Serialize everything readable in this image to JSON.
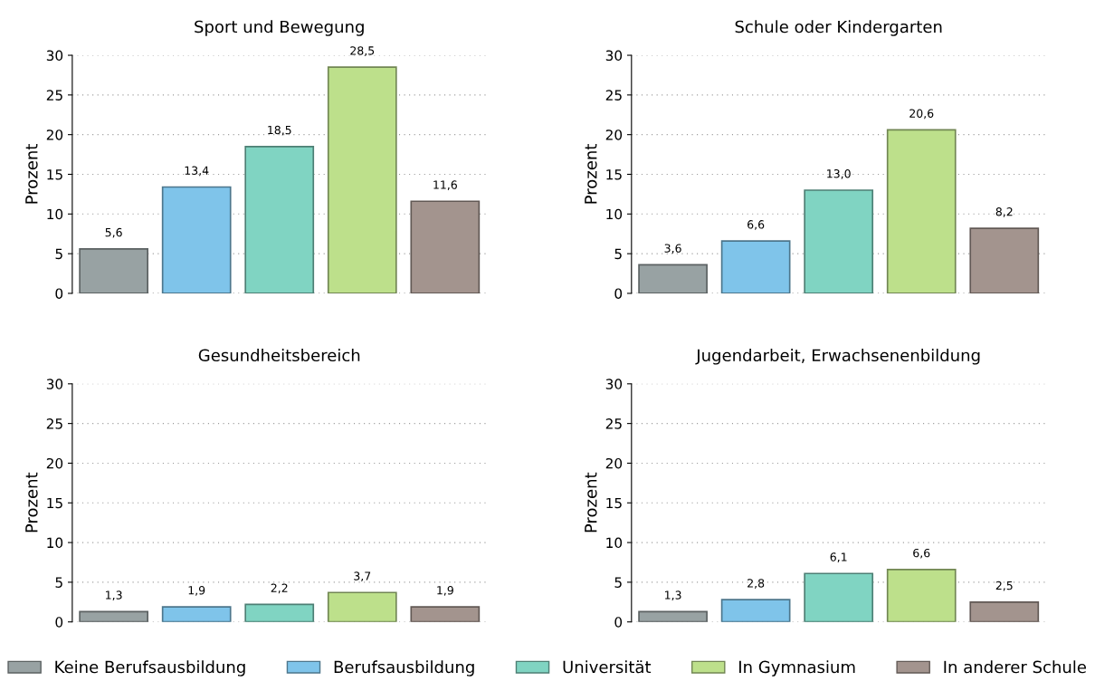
{
  "chart_data": [
    {
      "type": "bar",
      "title": "Sport und Bewegung",
      "ylabel": "Prozent",
      "categories": [
        null,
        null,
        null,
        null,
        null
      ],
      "ylim": [
        0,
        30
      ],
      "yticks": [
        0,
        5,
        10,
        15,
        20,
        25,
        30
      ],
      "grid": "y",
      "series": [
        {
          "color": "#98a2a3",
          "values": [
            5.6,
            null,
            null,
            null,
            null
          ],
          "value_labels": [
            "5,6",
            null,
            null,
            null,
            null
          ]
        },
        {
          "color": "#7fc4ea",
          "values": [
            null,
            13.4,
            null,
            null,
            null
          ],
          "value_labels": [
            null,
            "13,4",
            null,
            null,
            null
          ]
        },
        {
          "color": "#80d4c2",
          "values": [
            null,
            null,
            18.5,
            null,
            null
          ],
          "value_labels": [
            null,
            null,
            "18,5",
            null,
            null
          ]
        },
        {
          "color": "#bde08b",
          "values": [
            null,
            null,
            null,
            28.5,
            null
          ],
          "value_labels": [
            null,
            null,
            null,
            "28,5",
            null
          ]
        },
        {
          "color": "#a3948e",
          "values": [
            null,
            null,
            null,
            null,
            11.6
          ],
          "value_labels": [
            null,
            null,
            null,
            null,
            "11,6"
          ]
        }
      ]
    },
    {
      "type": "bar",
      "title": "Schule oder Kindergarten",
      "ylabel": "Prozent",
      "categories": [
        null,
        null,
        null,
        null,
        null
      ],
      "ylim": [
        0,
        30
      ],
      "yticks": [
        0,
        5,
        10,
        15,
        20,
        25,
        30
      ],
      "grid": "y",
      "series": [
        {
          "color": "#98a2a3",
          "values": [
            3.6,
            null,
            null,
            null,
            null
          ],
          "value_labels": [
            "3,6",
            null,
            null,
            null,
            null
          ]
        },
        {
          "color": "#7fc4ea",
          "values": [
            null,
            6.6,
            null,
            null,
            null
          ],
          "value_labels": [
            null,
            "6,6",
            null,
            null,
            null
          ]
        },
        {
          "color": "#80d4c2",
          "values": [
            null,
            null,
            13.0,
            null,
            null
          ],
          "value_labels": [
            null,
            null,
            "13,0",
            null,
            null
          ]
        },
        {
          "color": "#bde08b",
          "values": [
            null,
            null,
            null,
            20.6,
            null
          ],
          "value_labels": [
            null,
            null,
            null,
            "20,6",
            null
          ]
        },
        {
          "color": "#a3948e",
          "values": [
            null,
            null,
            null,
            null,
            8.2
          ],
          "value_labels": [
            null,
            null,
            null,
            null,
            "8,2"
          ]
        }
      ]
    },
    {
      "type": "bar",
      "title": "Gesundheitsbereich",
      "ylabel": "Prozent",
      "categories": [
        null,
        null,
        null,
        null,
        null
      ],
      "ylim": [
        0,
        30
      ],
      "yticks": [
        0,
        5,
        10,
        15,
        20,
        25,
        30
      ],
      "grid": "y",
      "series": [
        {
          "color": "#98a2a3",
          "values": [
            1.3,
            null,
            null,
            null,
            null
          ],
          "value_labels": [
            "1,3",
            null,
            null,
            null,
            null
          ]
        },
        {
          "color": "#7fc4ea",
          "values": [
            null,
            1.9,
            null,
            null,
            null
          ],
          "value_labels": [
            null,
            "1,9",
            null,
            null,
            null
          ]
        },
        {
          "color": "#80d4c2",
          "values": [
            null,
            null,
            2.2,
            null,
            null
          ],
          "value_labels": [
            null,
            null,
            "2,2",
            null,
            null
          ]
        },
        {
          "color": "#bde08b",
          "values": [
            null,
            null,
            null,
            3.7,
            null
          ],
          "value_labels": [
            null,
            null,
            null,
            "3,7",
            null
          ]
        },
        {
          "color": "#a3948e",
          "values": [
            null,
            null,
            null,
            null,
            1.9
          ],
          "value_labels": [
            null,
            null,
            null,
            null,
            "1,9"
          ]
        }
      ]
    },
    {
      "type": "bar",
      "title": "Jugendarbeit, Erwachsenenbildung",
      "ylabel": "Prozent",
      "categories": [
        null,
        null,
        null,
        null,
        null
      ],
      "ylim": [
        0,
        30
      ],
      "yticks": [
        0,
        5,
        10,
        15,
        20,
        25,
        30
      ],
      "grid": "y",
      "legend": "bottom",
      "series": [
        {
          "name": "Keine Berufsausbildung",
          "color": "#98a2a3",
          "values": [
            1.3,
            null,
            null,
            null,
            null
          ],
          "value_labels": [
            "1,3",
            null,
            null,
            null,
            null
          ]
        },
        {
          "name": "Berufsausbildung",
          "color": "#7fc4ea",
          "values": [
            null,
            2.8,
            null,
            null,
            null
          ],
          "value_labels": [
            null,
            "2,8",
            null,
            null,
            null
          ]
        },
        {
          "name": "Universität",
          "color": "#80d4c2",
          "values": [
            null,
            null,
            6.1,
            null,
            null
          ],
          "value_labels": [
            null,
            null,
            "6,1",
            null,
            null
          ]
        },
        {
          "name": "In Gymnasium",
          "color": "#bde08b",
          "values": [
            null,
            null,
            null,
            6.6,
            null
          ],
          "value_labels": [
            null,
            null,
            null,
            "6,6",
            null
          ]
        },
        {
          "name": "In anderer Schule",
          "color": "#a3948e",
          "values": [
            null,
            null,
            null,
            null,
            2.5
          ],
          "value_labels": [
            null,
            null,
            null,
            null,
            "2,5"
          ]
        }
      ]
    }
  ]
}
